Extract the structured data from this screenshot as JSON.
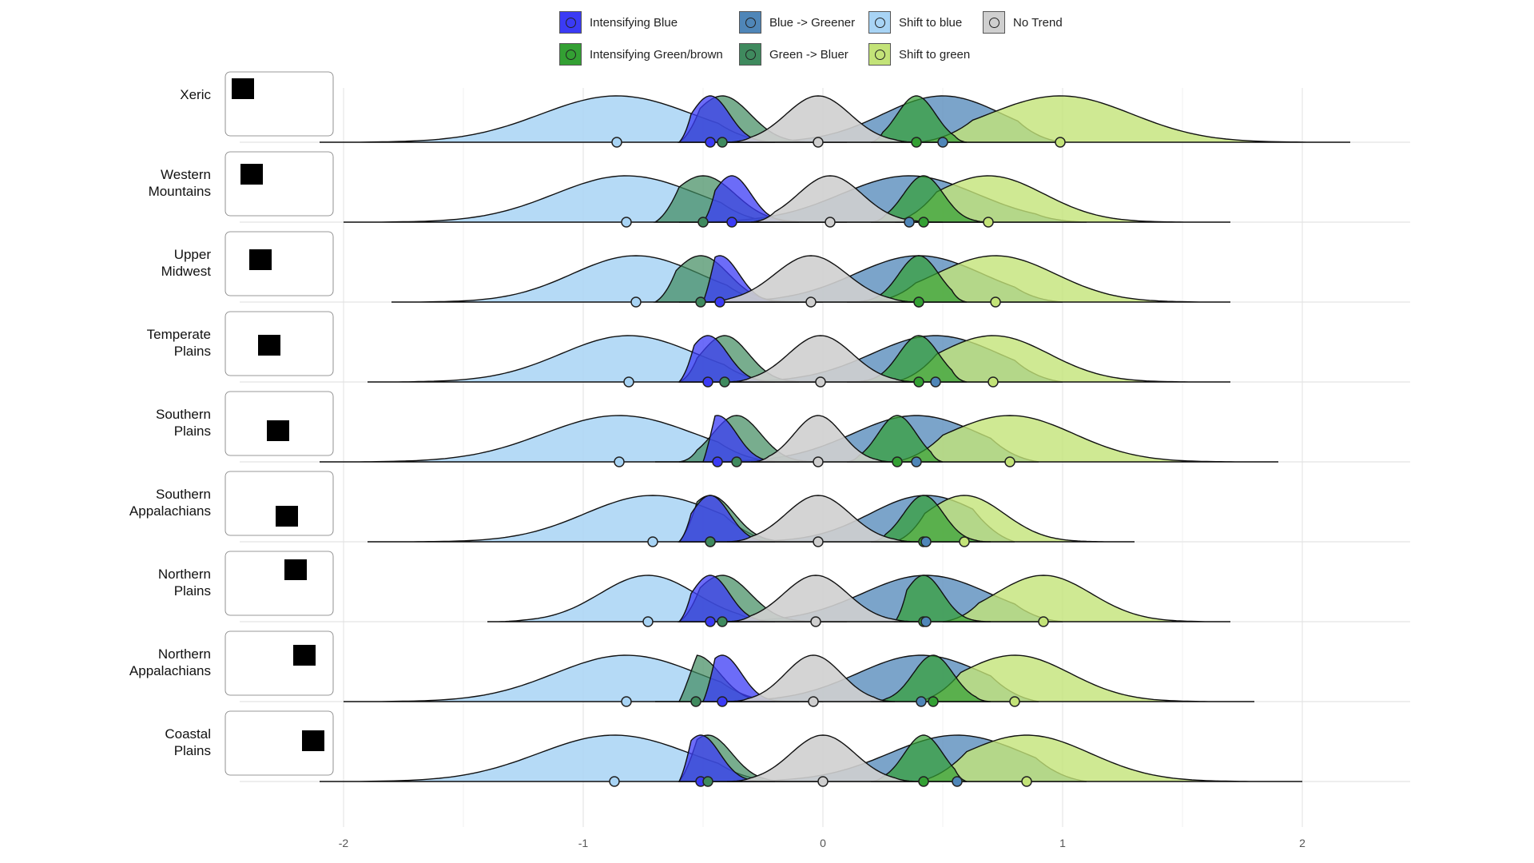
{
  "legend": {
    "items": [
      {
        "key": "intensifying_blue",
        "label": "Intensifying Blue",
        "color": "#3b3bf5"
      },
      {
        "key": "blue_greener",
        "label": "Blue -> Greener",
        "color": "#4f86b8"
      },
      {
        "key": "shift_blue",
        "label": "Shift to blue",
        "color": "#a8d4f5"
      },
      {
        "key": "no_trend",
        "label": "No Trend",
        "color": "#cfcfcf"
      },
      {
        "key": "intensifying_green",
        "label": "Intensifying Green/brown",
        "color": "#33a033"
      },
      {
        "key": "green_bluer",
        "label": "Green -> Bluer",
        "color": "#3f8a5e"
      },
      {
        "key": "shift_green",
        "label": "Shift to green",
        "color": "#c3e378"
      }
    ]
  },
  "chart_data": {
    "type": "ridgeline",
    "xlim": [
      -2.4,
      2.4
    ],
    "x_ticks": [
      -2,
      -1,
      0,
      1,
      2
    ],
    "x_tick_labels": [
      "-2",
      "-1",
      "0",
      "1",
      "2"
    ],
    "grid": true,
    "legend_position": "top",
    "rows": [
      {
        "name": [
          "Xeric"
        ],
        "ranges": {
          "shift_blue": [
            -2.1,
            -0.2
          ],
          "blue_greener": [
            -0.5,
            1.0
          ],
          "intensifying_blue": [
            -0.6,
            -0.2
          ],
          "green_bluer": [
            -0.6,
            0.1
          ],
          "no_trend": [
            -0.4,
            0.4
          ],
          "intensifying_green": [
            0.2,
            0.6
          ],
          "shift_green": [
            0.4,
            2.2
          ]
        },
        "means": {
          "shift_blue": -0.86,
          "intensifying_blue": -0.47,
          "green_bluer": -0.42,
          "no_trend": -0.02,
          "intensifying_green": 0.39,
          "blue_greener": 0.5,
          "shift_green": 0.99
        }
      },
      {
        "name": [
          "Western",
          "Mountains"
        ],
        "ranges": {
          "shift_blue": [
            -2.0,
            -0.2
          ],
          "blue_greener": [
            -0.6,
            1.1
          ],
          "intensifying_blue": [
            -0.5,
            -0.1
          ],
          "green_bluer": [
            -0.7,
            0.1
          ],
          "no_trend": [
            -0.3,
            0.5
          ],
          "intensifying_green": [
            0.2,
            0.7
          ],
          "shift_green": [
            0.3,
            1.7
          ]
        },
        "means": {
          "shift_blue": -0.82,
          "green_bluer": -0.5,
          "intensifying_blue": -0.38,
          "no_trend": 0.03,
          "blue_greener": 0.36,
          "intensifying_green": 0.42,
          "shift_green": 0.69
        }
      },
      {
        "name": [
          "Upper",
          "Midwest"
        ],
        "ranges": {
          "shift_blue": [
            -1.8,
            -0.2
          ],
          "blue_greener": [
            -0.6,
            1.0
          ],
          "intensifying_blue": [
            -0.5,
            -0.1
          ],
          "green_bluer": [
            -0.7,
            0.0
          ],
          "no_trend": [
            -0.5,
            0.4
          ],
          "intensifying_green": [
            0.1,
            0.6
          ],
          "shift_green": [
            0.2,
            1.7
          ]
        },
        "means": {
          "shift_blue": -0.78,
          "green_bluer": -0.51,
          "intensifying_blue": -0.43,
          "no_trend": -0.05,
          "blue_greener": 0.4,
          "intensifying_green": 0.4,
          "shift_green": 0.72
        }
      },
      {
        "name": [
          "Temperate",
          "Plains"
        ],
        "ranges": {
          "shift_blue": [
            -1.9,
            -0.2
          ],
          "blue_greener": [
            -0.6,
            1.0
          ],
          "intensifying_blue": [
            -0.6,
            -0.1
          ],
          "green_bluer": [
            -0.6,
            0.0
          ],
          "no_trend": [
            -0.4,
            0.4
          ],
          "intensifying_green": [
            0.1,
            0.6
          ],
          "shift_green": [
            0.3,
            1.7
          ]
        },
        "means": {
          "shift_blue": -0.81,
          "intensifying_blue": -0.48,
          "green_bluer": -0.41,
          "no_trend": -0.01,
          "intensifying_green": 0.4,
          "blue_greener": 0.47,
          "shift_green": 0.71
        }
      },
      {
        "name": [
          "Southern",
          "Plains"
        ],
        "ranges": {
          "shift_blue": [
            -2.1,
            -0.2
          ],
          "blue_greener": [
            -0.7,
            0.9
          ],
          "intensifying_blue": [
            -0.5,
            -0.1
          ],
          "green_bluer": [
            -0.6,
            0.0
          ],
          "no_trend": [
            -0.3,
            0.3
          ],
          "intensifying_green": [
            0.1,
            0.5
          ],
          "shift_green": [
            0.3,
            1.9
          ]
        },
        "means": {
          "shift_blue": -0.85,
          "intensifying_blue": -0.44,
          "green_bluer": -0.36,
          "no_trend": -0.02,
          "intensifying_green": 0.31,
          "blue_greener": 0.39,
          "shift_green": 0.78
        }
      },
      {
        "name": [
          "Southern",
          "Appalachians"
        ],
        "ranges": {
          "shift_blue": [
            -1.9,
            -0.2
          ],
          "blue_greener": [
            -0.6,
            0.8
          ],
          "intensifying_blue": [
            -0.6,
            -0.2
          ],
          "green_bluer": [
            -0.6,
            0.0
          ],
          "no_trend": [
            -0.4,
            0.4
          ],
          "intensifying_green": [
            0.2,
            0.7
          ],
          "shift_green": [
            0.3,
            1.3
          ]
        },
        "means": {
          "shift_blue": -0.71,
          "intensifying_blue": -0.47,
          "green_bluer": -0.47,
          "no_trend": -0.02,
          "intensifying_green": 0.42,
          "blue_greener": 0.43,
          "shift_green": 0.59
        }
      },
      {
        "name": [
          "Northern",
          "Plains"
        ],
        "ranges": {
          "shift_blue": [
            -1.4,
            -0.2
          ],
          "blue_greener": [
            -0.6,
            1.0
          ],
          "intensifying_blue": [
            -0.6,
            -0.2
          ],
          "green_bluer": [
            -0.6,
            0.1
          ],
          "no_trend": [
            -0.4,
            0.4
          ],
          "intensifying_green": [
            0.3,
            0.7
          ],
          "shift_green": [
            0.5,
            1.7
          ]
        },
        "means": {
          "shift_blue": -0.73,
          "intensifying_blue": -0.47,
          "green_bluer": -0.42,
          "no_trend": -0.03,
          "intensifying_green": 0.42,
          "blue_greener": 0.43,
          "shift_green": 0.92
        }
      },
      {
        "name": [
          "Northern",
          "Appalachians"
        ],
        "ranges": {
          "shift_blue": [
            -2.0,
            -0.2
          ],
          "blue_greener": [
            -0.7,
            0.9
          ],
          "intensifying_blue": [
            -0.5,
            -0.1
          ],
          "green_bluer": [
            -0.6,
            0.0
          ],
          "no_trend": [
            -0.4,
            0.3
          ],
          "intensifying_green": [
            0.2,
            0.7
          ],
          "shift_green": [
            0.4,
            1.8
          ]
        },
        "means": {
          "shift_blue": -0.82,
          "green_bluer": -0.53,
          "intensifying_blue": -0.42,
          "no_trend": -0.04,
          "blue_greener": 0.41,
          "intensifying_green": 0.46,
          "shift_green": 0.8
        }
      },
      {
        "name": [
          "Coastal",
          "Plains"
        ],
        "ranges": {
          "shift_blue": [
            -2.1,
            -0.2
          ],
          "blue_greener": [
            -0.6,
            1.1
          ],
          "intensifying_blue": [
            -0.6,
            -0.2
          ],
          "green_bluer": [
            -0.6,
            0.0
          ],
          "no_trend": [
            -0.4,
            0.4
          ],
          "intensifying_green": [
            0.2,
            0.6
          ],
          "shift_green": [
            0.4,
            2.0
          ]
        },
        "means": {
          "shift_blue": -0.87,
          "intensifying_blue": -0.51,
          "green_bluer": -0.48,
          "no_trend": 0.0,
          "intensifying_green": 0.42,
          "blue_greener": 0.56,
          "shift_green": 0.85
        }
      }
    ]
  }
}
